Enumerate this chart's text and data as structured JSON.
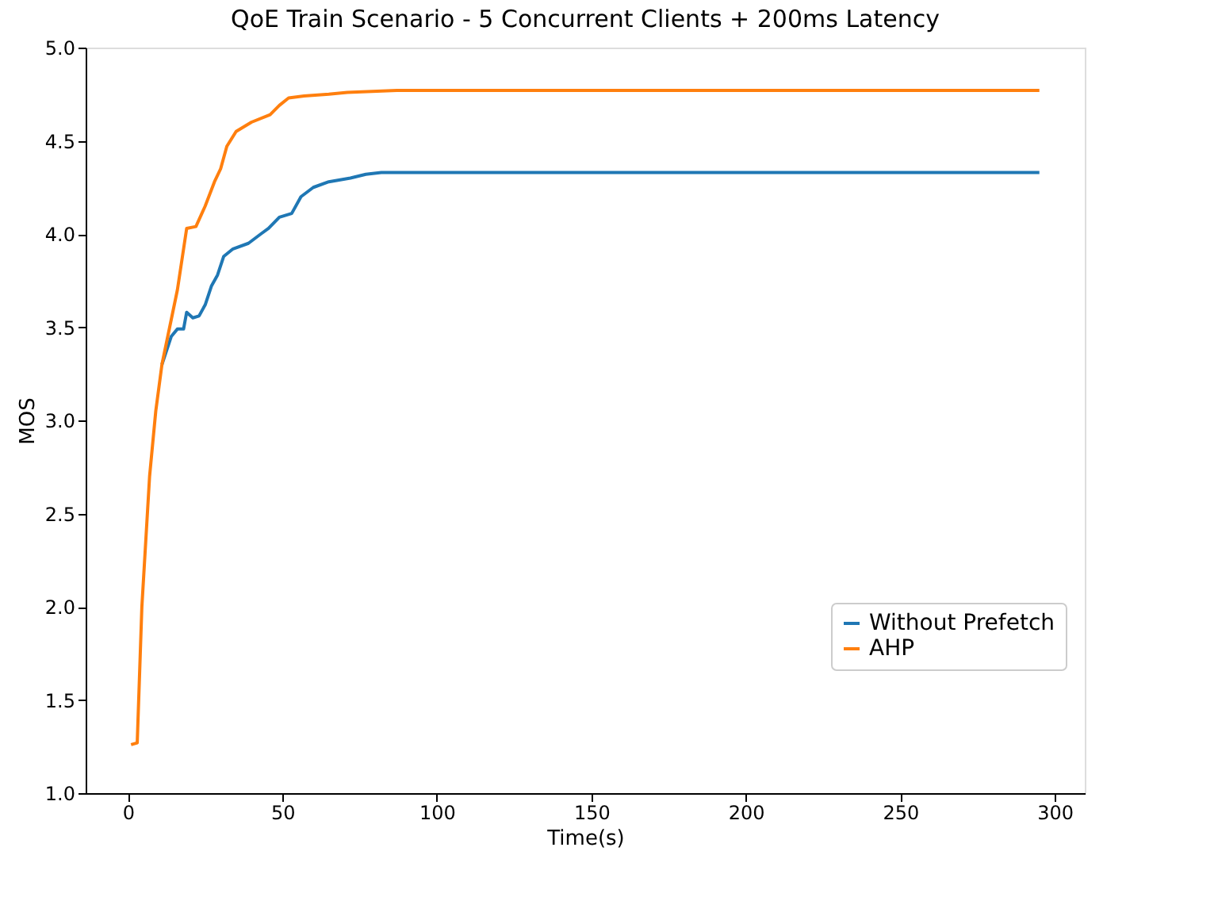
{
  "chart_data": {
    "type": "line",
    "title": "QoE Train Scenario - 5 Concurrent Clients + 200ms Latency",
    "xlabel": "Time(s)",
    "ylabel": "MOS",
    "xlim": [
      -13.7,
      309.7
    ],
    "xticks": [
      0,
      50,
      100,
      150,
      200,
      250,
      300
    ],
    "ylim": [
      1.0,
      5.0
    ],
    "yticks": [
      {
        "value": 1,
        "label": "1.0"
      },
      1.5,
      {
        "value": 2,
        "label": "2.0"
      },
      2.5,
      {
        "value": 3,
        "label": "3.0"
      },
      3.5,
      {
        "value": 4,
        "label": "4.0"
      },
      4.5,
      {
        "value": 5,
        "label": "5.0"
      }
    ],
    "grid": false,
    "legend": "bottom right",
    "line_style": "solid",
    "marker": "none",
    "series": [
      {
        "name": "Without Prefetch",
        "color": "#1f77b4",
        "x": [
          11,
          14,
          16,
          18,
          19,
          21,
          23,
          25,
          27,
          29,
          31,
          34,
          39,
          43,
          45.5,
          49,
          53,
          56,
          60,
          65,
          72,
          77,
          82,
          295
        ],
        "values": [
          3.3,
          3.45,
          3.49,
          3.49,
          3.58,
          3.55,
          3.56,
          3.62,
          3.72,
          3.78,
          3.88,
          3.92,
          3.95,
          4.0,
          4.03,
          4.09,
          4.11,
          4.2,
          4.25,
          4.28,
          4.3,
          4.32,
          4.33,
          4.33
        ]
      },
      {
        "name": "AHP",
        "color": "#ff7f0e",
        "x": [
          1,
          3,
          4.5,
          7,
          9,
          11,
          13.5,
          16,
          19,
          22,
          25,
          28,
          30,
          32,
          35,
          40,
          46,
          49,
          52,
          57,
          65,
          71,
          87,
          295
        ],
        "values": [
          1.26,
          1.27,
          2.0,
          2.7,
          3.05,
          3.3,
          3.5,
          3.7,
          4.03,
          4.04,
          4.15,
          4.28,
          4.35,
          4.47,
          4.55,
          4.6,
          4.64,
          4.69,
          4.73,
          4.74,
          4.75,
          4.76,
          4.77,
          4.77
        ]
      }
    ]
  }
}
